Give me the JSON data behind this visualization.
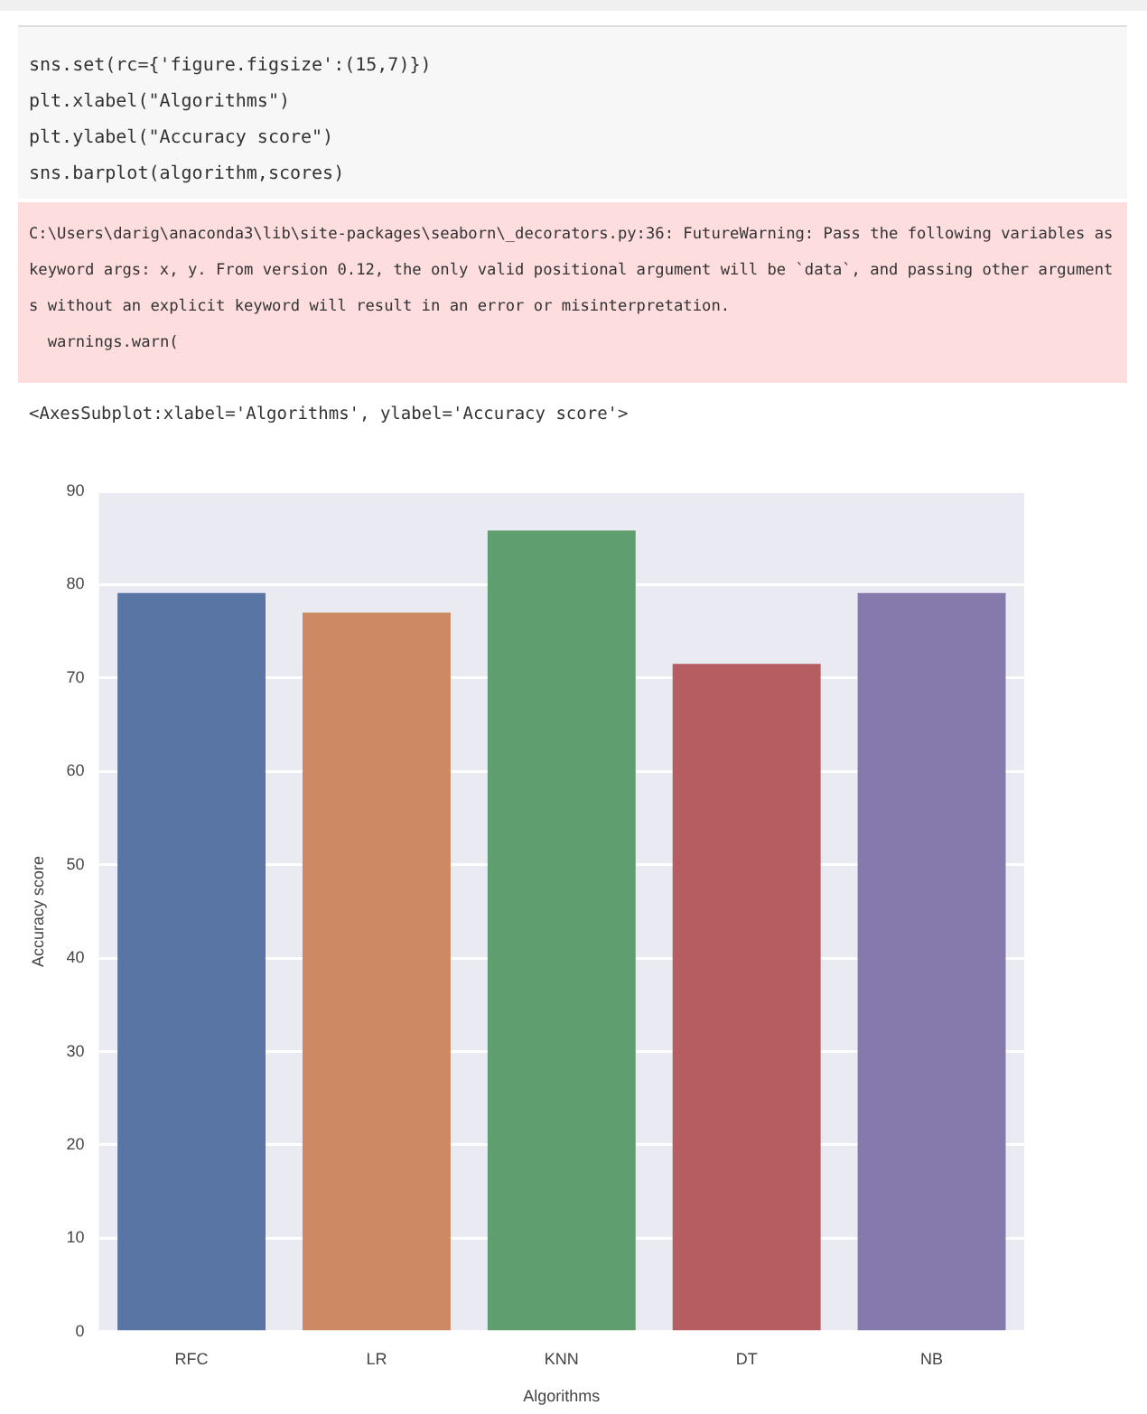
{
  "chart_data": {
    "type": "bar",
    "xlabel": "Algorithms",
    "ylabel": "Accuracy score",
    "categories": [
      "RFC",
      "LR",
      "KNN",
      "DT",
      "NB"
    ],
    "values": [
      79.1,
      77,
      85.8,
      71.5,
      79.1
    ],
    "colors": [
      "#5975a4",
      "#cc8963",
      "#5f9e6e",
      "#b55d60",
      "#857aab"
    ],
    "ylim": [
      0,
      90
    ],
    "yticks": [
      0,
      10,
      20,
      30,
      40,
      50,
      60,
      70,
      80,
      90
    ],
    "grid": "y",
    "legend": false,
    "annotations": [
      "sns.set(rc={'figure.figsize':(15,7)})\nplt.xlabel(\"Algorithms\")\nplt.ylabel(\"Accuracy score\")\nsns.barplot(algorithm,scores)",
      "C:\\Users\\darig\\anaconda3\\lib\\site-packages\\seaborn\\_decorators.py:36: FutureWarning: Pass the following variables as keyword args: x, y. From version 0.12, the only valid positional argument will be `data`, and passing other arguments without an explicit keyword will result in an error or misinterpretation.\n  warnings.warn(",
      "<AxesSubplot:xlabel='Algorithms', ylabel='Accuracy score'>"
    ]
  }
}
